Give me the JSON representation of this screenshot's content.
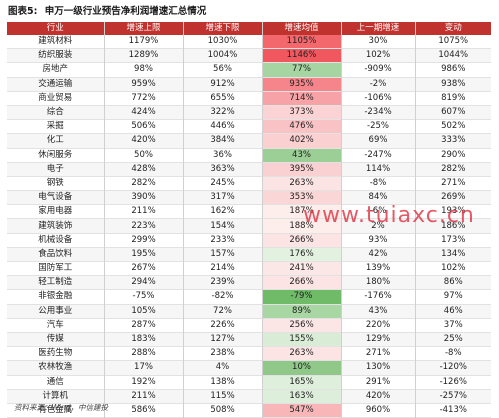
{
  "title": {
    "label": "图表5:",
    "text": "申万一级行业预告净利润增速汇总情况"
  },
  "columns": [
    "行业",
    "增速上限",
    "增速下限",
    "增速均值",
    "上一期增速",
    "变动"
  ],
  "rows": [
    {
      "industry": "建筑材料",
      "upper": "1179%",
      "lower": "1030%",
      "mean": "1105%",
      "prev": "30%",
      "change": "1075%",
      "mean_color": "#f3686d"
    },
    {
      "industry": "纺织服装",
      "upper": "1289%",
      "lower": "1004%",
      "mean": "1146%",
      "prev": "102%",
      "change": "1044%",
      "mean_color": "#f0575f"
    },
    {
      "industry": "房地产",
      "upper": "98%",
      "lower": "56%",
      "mean": "77%",
      "prev": "-909%",
      "change": "986%",
      "mean_color": "#a6d5a1"
    },
    {
      "industry": "交通运输",
      "upper": "959%",
      "lower": "912%",
      "mean": "935%",
      "prev": "-2%",
      "change": "938%",
      "mean_color": "#f5858a"
    },
    {
      "industry": "商业贸易",
      "upper": "772%",
      "lower": "655%",
      "mean": "714%",
      "prev": "-106%",
      "change": "819%",
      "mean_color": "#f7a2a6"
    },
    {
      "industry": "综合",
      "upper": "424%",
      "lower": "322%",
      "mean": "373%",
      "prev": "-234%",
      "change": "607%",
      "mean_color": "#fbd3d4"
    },
    {
      "industry": "采掘",
      "upper": "506%",
      "lower": "446%",
      "mean": "476%",
      "prev": "-25%",
      "change": "502%",
      "mean_color": "#f9c3c5"
    },
    {
      "industry": "化工",
      "upper": "420%",
      "lower": "384%",
      "mean": "402%",
      "prev": "69%",
      "change": "333%",
      "mean_color": "#fad0d1"
    },
    {
      "industry": "休闲服务",
      "upper": "50%",
      "lower": "36%",
      "mean": "43%",
      "prev": "-247%",
      "change": "290%",
      "mean_color": "#9ccf96"
    },
    {
      "industry": "电子",
      "upper": "428%",
      "lower": "363%",
      "mean": "395%",
      "prev": "114%",
      "change": "282%",
      "mean_color": "#fad1d2"
    },
    {
      "industry": "钢铁",
      "upper": "282%",
      "lower": "245%",
      "mean": "263%",
      "prev": "-8%",
      "change": "271%",
      "mean_color": "#fce4e4"
    },
    {
      "industry": "电气设备",
      "upper": "390%",
      "lower": "317%",
      "mean": "353%",
      "prev": "84%",
      "change": "269%",
      "mean_color": "#fbd6d7"
    },
    {
      "industry": "家用电器",
      "upper": "211%",
      "lower": "162%",
      "mean": "187%",
      "prev": "-6%",
      "change": "193%",
      "mean_color": "#fdedeb"
    },
    {
      "industry": "建筑装饰",
      "upper": "223%",
      "lower": "154%",
      "mean": "188%",
      "prev": "2%",
      "change": "186%",
      "mean_color": "#fdedeb"
    },
    {
      "industry": "机械设备",
      "upper": "299%",
      "lower": "233%",
      "mean": "266%",
      "prev": "93%",
      "change": "173%",
      "mean_color": "#fce4e4"
    },
    {
      "industry": "食品饮料",
      "upper": "195%",
      "lower": "157%",
      "mean": "176%",
      "prev": "42%",
      "change": "134%",
      "mean_color": "#e2f1e0"
    },
    {
      "industry": "国防军工",
      "upper": "267%",
      "lower": "214%",
      "mean": "241%",
      "prev": "139%",
      "change": "102%",
      "mean_color": "#fbe7e6"
    },
    {
      "industry": "轻工制造",
      "upper": "294%",
      "lower": "239%",
      "mean": "266%",
      "prev": "180%",
      "change": "86%",
      "mean_color": "#fce4e4"
    },
    {
      "industry": "非银金融",
      "upper": "-75%",
      "lower": "-82%",
      "mean": "-79%",
      "prev": "-176%",
      "change": "97%",
      "mean_color": "#6fbb67"
    },
    {
      "industry": "公用事业",
      "upper": "105%",
      "lower": "72%",
      "mean": "89%",
      "prev": "43%",
      "change": "46%",
      "mean_color": "#a9d7a4"
    },
    {
      "industry": "汽车",
      "upper": "287%",
      "lower": "226%",
      "mean": "256%",
      "prev": "220%",
      "change": "37%",
      "mean_color": "#fce5e5"
    },
    {
      "industry": "传媒",
      "upper": "183%",
      "lower": "127%",
      "mean": "155%",
      "prev": "129%",
      "change": "25%",
      "mean_color": "#d9edd6"
    },
    {
      "industry": "医药生物",
      "upper": "288%",
      "lower": "238%",
      "mean": "263%",
      "prev": "271%",
      "change": "-8%",
      "mean_color": "#fce4e4"
    },
    {
      "industry": "农林牧渔",
      "upper": "17%",
      "lower": "4%",
      "mean": "10%",
      "prev": "130%",
      "change": "-120%",
      "mean_color": "#8fc889"
    },
    {
      "industry": "通信",
      "upper": "192%",
      "lower": "138%",
      "mean": "165%",
      "prev": "291%",
      "change": "-126%",
      "mean_color": "#deefdb"
    },
    {
      "industry": "计算机",
      "upper": "211%",
      "lower": "115%",
      "mean": "163%",
      "prev": "420%",
      "change": "-257%",
      "mean_color": "#ddeedb"
    },
    {
      "industry": "有色金属",
      "upper": "586%",
      "lower": "508%",
      "mean": "547%",
      "prev": "960%",
      "change": "-413%",
      "mean_color": "#f8b6b8"
    }
  ],
  "footer": "资料来源：Wind，中信建投",
  "watermark": "www.tuiaxc.cn"
}
